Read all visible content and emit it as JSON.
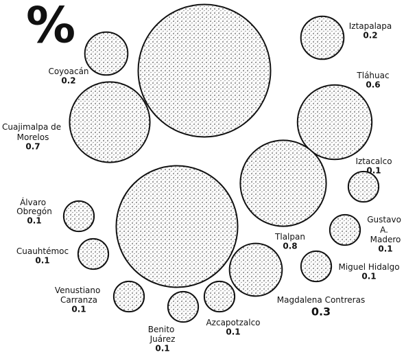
{
  "chart_data": {
    "type": "bubble",
    "title": "%",
    "categories": [
      "Coyoacán",
      "Iztapalapa",
      "Tláhuac",
      "Cuajimalpa de Morelos",
      "Iztacalco",
      "Álvaro Obregón",
      "Gustavo A. Madero",
      "Tlalpan",
      "Cuauhtémoc",
      "Miguel Hidalgo",
      "Magdalena Contreras",
      "Venustiano Carranza",
      "Azcapotzalco",
      "Benito Juárez",
      null,
      null
    ],
    "values": [
      0.2,
      0.2,
      0.6,
      0.7,
      0.1,
      0.1,
      0.1,
      0.8,
      0.1,
      0.1,
      0.3,
      0.1,
      0.1,
      0.1,
      1.9,
      1.6
    ],
    "color": "#d4d4d4"
  }
}
